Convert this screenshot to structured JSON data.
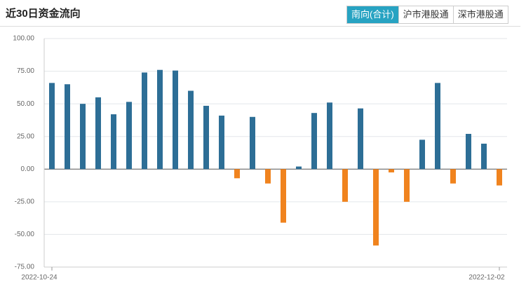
{
  "header": {
    "title": "近30日资金流向",
    "tabs": [
      "南向(合计)",
      "沪市港股通",
      "深市港股通"
    ],
    "active_tab": 0
  },
  "chart_data": {
    "type": "bar",
    "categories": [
      "2022-10-24",
      null,
      null,
      null,
      null,
      null,
      null,
      null,
      null,
      null,
      null,
      null,
      null,
      null,
      null,
      null,
      null,
      null,
      null,
      null,
      null,
      null,
      null,
      null,
      null,
      null,
      null,
      null,
      null,
      "2022-12-02"
    ],
    "values": [
      66,
      65,
      50,
      55,
      42,
      51.5,
      74,
      76,
      75.5,
      60,
      48.5,
      41,
      -7,
      40,
      -11,
      -41,
      2,
      43,
      51,
      -25,
      46.5,
      -58.5,
      -2.5,
      -25,
      22.5,
      66,
      -11,
      27,
      19.5,
      -12.5
    ],
    "positive_color": "#2d6e96",
    "negative_color": "#f0831e",
    "ylim": [
      -75,
      100
    ],
    "yticks": [
      {
        "value": -75,
        "label": "-75.00"
      },
      {
        "value": -50,
        "label": "-50.00"
      },
      {
        "value": -25,
        "label": "-25.00"
      },
      {
        "value": 0,
        "label": "0.00"
      },
      {
        "value": 25,
        "label": "25.00"
      },
      {
        "value": 50,
        "label": "50.00"
      },
      {
        "value": 75,
        "label": "75.00"
      },
      {
        "value": 100,
        "label": "100.00"
      }
    ],
    "grid": true
  }
}
